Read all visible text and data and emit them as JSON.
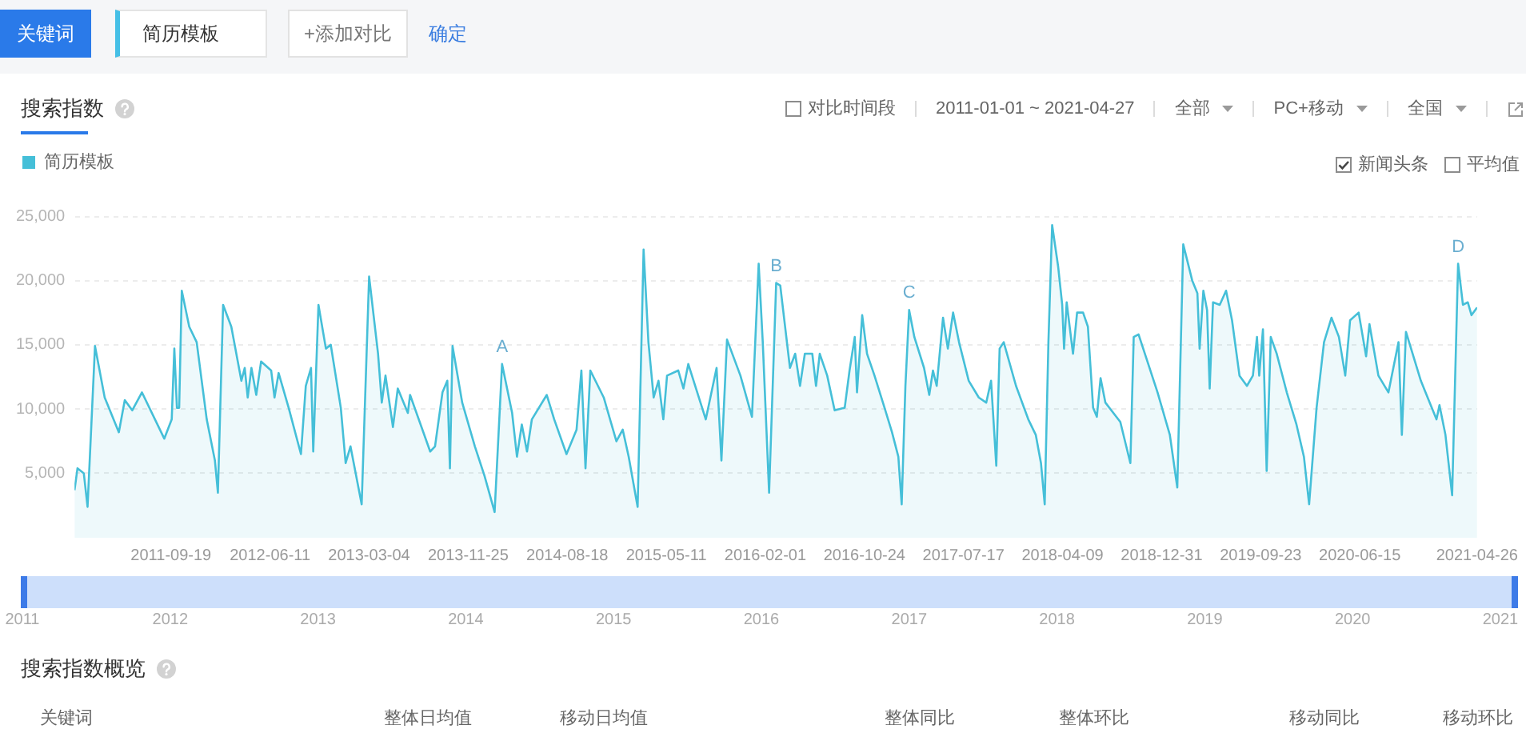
{
  "chart_data": {
    "type": "area",
    "title": "搜索指数",
    "x": [
      "2011-01-03",
      "2011-01-11",
      "2011-01-28",
      "2011-02-07",
      "2011-02-27",
      "2011-03-25",
      "2011-05-02",
      "2011-05-18",
      "2011-06-07",
      "2011-07-03",
      "2011-09-01",
      "2011-09-21",
      "2011-09-28",
      "2011-10-05",
      "2011-10-11",
      "2011-10-18",
      "2011-11-07",
      "2011-11-27",
      "2011-12-24",
      "2012-01-15",
      "2012-01-23",
      "2012-02-06",
      "2012-02-28",
      "2012-03-26",
      "2012-04-04",
      "2012-04-12",
      "2012-04-22",
      "2012-05-05",
      "2012-05-18",
      "2012-06-14",
      "2012-06-23",
      "2012-07-04",
      "2012-07-31",
      "2012-09-02",
      "2012-09-15",
      "2012-09-29",
      "2012-10-05",
      "2012-10-19",
      "2012-11-08",
      "2012-11-21",
      "2012-12-18",
      "2012-12-31",
      "2013-01-13",
      "2013-02-12",
      "2013-03-04",
      "2013-03-28",
      "2013-04-07",
      "2013-04-17",
      "2013-05-07",
      "2013-05-20",
      "2013-06-16",
      "2013-06-22",
      "2013-08-15",
      "2013-08-28",
      "2013-09-17",
      "2013-09-30",
      "2013-10-07",
      "2013-10-14",
      "2013-11-09",
      "2013-12-13",
      "2014-01-08",
      "2014-02-04",
      "2014-02-24",
      "2014-03-23",
      "2014-04-05",
      "2014-04-18",
      "2014-05-02",
      "2014-05-15",
      "2014-06-24",
      "2014-07-14",
      "2014-08-16",
      "2014-09-12",
      "2014-09-25",
      "2014-10-06",
      "2014-10-19",
      "2014-11-24",
      "2014-12-28",
      "2015-01-14",
      "2015-01-30",
      "2015-02-23",
      "2015-03-11",
      "2015-03-24",
      "2015-04-07",
      "2015-04-20",
      "2015-05-03",
      "2015-05-13",
      "2015-06-12",
      "2015-06-26",
      "2015-07-09",
      "2015-08-25",
      "2015-09-23",
      "2015-10-06",
      "2015-10-21",
      "2015-11-26",
      "2015-12-27",
      "2016-01-14",
      "2016-01-25",
      "2016-02-11",
      "2016-03-01",
      "2016-03-12",
      "2016-03-25",
      "2016-04-07",
      "2016-04-21",
      "2016-05-04",
      "2016-05-17",
      "2016-06-06",
      "2016-06-16",
      "2016-06-26",
      "2016-07-16",
      "2016-08-05",
      "2016-09-01",
      "2016-09-14",
      "2016-09-28",
      "2016-10-04",
      "2016-10-18",
      "2016-10-31",
      "2016-11-20",
      "2016-12-17",
      "2017-01-06",
      "2017-01-23",
      "2017-02-01",
      "2017-02-11",
      "2017-02-21",
      "2017-03-07",
      "2017-04-02",
      "2017-04-16",
      "2017-04-26",
      "2017-05-06",
      "2017-05-23",
      "2017-06-05",
      "2017-06-19",
      "2017-07-05",
      "2017-07-31",
      "2017-08-27",
      "2017-09-16",
      "2017-09-29",
      "2017-10-13",
      "2017-10-22",
      "2017-11-02",
      "2017-12-05",
      "2018-01-07",
      "2018-01-27",
      "2018-02-10",
      "2018-02-20",
      "2018-03-02",
      "2018-03-12",
      "2018-03-28",
      "2018-04-08",
      "2018-04-13",
      "2018-04-20",
      "2018-05-07",
      "2018-05-18",
      "2018-06-03",
      "2018-06-16",
      "2018-06-30",
      "2018-07-10",
      "2018-07-20",
      "2018-08-02",
      "2018-09-11",
      "2018-10-08",
      "2018-10-17",
      "2018-10-30",
      "2018-12-20",
      "2019-01-22",
      "2019-02-11",
      "2019-02-27",
      "2019-03-23",
      "2019-04-06",
      "2019-04-12",
      "2019-04-22",
      "2019-05-02",
      "2019-05-09",
      "2019-05-18",
      "2019-06-05",
      "2019-06-22",
      "2019-07-08",
      "2019-07-28",
      "2019-08-17",
      "2019-09-02",
      "2019-09-13",
      "2019-09-19",
      "2019-09-29",
      "2019-10-09",
      "2019-10-20",
      "2019-11-05",
      "2019-12-02",
      "2019-12-28",
      "2020-01-17",
      "2020-01-31",
      "2020-02-20",
      "2020-03-11",
      "2020-03-31",
      "2020-04-20",
      "2020-05-07",
      "2020-05-20",
      "2020-06-12",
      "2020-07-02",
      "2020-07-11",
      "2020-08-04",
      "2020-08-31",
      "2020-09-27",
      "2020-10-06",
      "2020-10-17",
      "2020-11-26",
      "2021-01-07",
      "2021-01-15",
      "2021-01-31",
      "2021-02-18",
      "2021-03-06",
      "2021-03-19",
      "2021-04-01",
      "2021-04-11",
      "2021-04-26"
    ],
    "series": [
      {
        "name": "简历模板",
        "color": "#45bfd8",
        "values": [
          3700,
          5400,
          5000,
          2400,
          14900,
          10900,
          8200,
          10700,
          9900,
          11300,
          7700,
          9200,
          14700,
          10100,
          10100,
          19200,
          16400,
          15200,
          9200,
          6000,
          3500,
          18100,
          16400,
          12200,
          13200,
          10900,
          13200,
          11100,
          13700,
          13000,
          10900,
          12800,
          10100,
          6500,
          11800,
          13200,
          6700,
          18100,
          14700,
          15000,
          10100,
          5800,
          7100,
          2600,
          20300,
          14300,
          10500,
          12600,
          8600,
          11600,
          9700,
          11100,
          6700,
          7100,
          11300,
          12200,
          5400,
          14900,
          10500,
          7100,
          4800,
          2000,
          13500,
          9700,
          6300,
          8800,
          6700,
          9200,
          11100,
          9200,
          6500,
          8400,
          13000,
          5400,
          13000,
          10900,
          7500,
          8400,
          6300,
          2400,
          22400,
          15200,
          10900,
          12200,
          9200,
          12600,
          13000,
          11600,
          13500,
          9200,
          13200,
          6000,
          15400,
          12600,
          9400,
          21300,
          15200,
          3500,
          19800,
          19600,
          16400,
          13200,
          14300,
          11800,
          14300,
          14300,
          11800,
          14300,
          12600,
          9900,
          10100,
          13000,
          15600,
          11300,
          17300,
          14300,
          12600,
          10100,
          8200,
          6300,
          2600,
          11800,
          17700,
          15600,
          13200,
          11100,
          13000,
          11800,
          17100,
          14700,
          17500,
          15200,
          12200,
          10900,
          10500,
          12200,
          5600,
          14700,
          15200,
          11800,
          9200,
          8000,
          5800,
          2600,
          15200,
          24300,
          21100,
          18100,
          14700,
          18300,
          14300,
          17500,
          17500,
          16400,
          10100,
          9400,
          12400,
          10500,
          9000,
          5800,
          15600,
          15800,
          11300,
          8000,
          3900,
          22800,
          20000,
          19000,
          14700,
          19200,
          17700,
          11600,
          18300,
          18100,
          19200,
          16900,
          12600,
          11800,
          12600,
          15600,
          12600,
          16200,
          5200,
          15600,
          14300,
          11300,
          8800,
          6300,
          2600,
          10100,
          15200,
          17100,
          15600,
          12600,
          16900,
          17500,
          14100,
          16600,
          12600,
          11300,
          15200,
          8000,
          16000,
          12200,
          9200,
          10300,
          8000,
          3300,
          21300,
          18100,
          18300,
          17300,
          17900
        ]
      }
    ],
    "xlim": [
      "2011-01-03",
      "2021-04-26"
    ],
    "xticks": [
      "2011-09-19",
      "2012-06-11",
      "2013-03-04",
      "2013-11-25",
      "2014-08-18",
      "2015-05-11",
      "2016-02-01",
      "2016-10-24",
      "2017-07-17",
      "2018-04-09",
      "2018-12-31",
      "2019-09-23",
      "2020-06-15",
      "2021-04-26"
    ],
    "ylim": [
      0,
      25000
    ],
    "yticks": [
      {
        "value": 5000,
        "label": "5,000"
      },
      {
        "value": 10000,
        "label": "10,000"
      },
      {
        "value": 15000,
        "label": "15,000"
      },
      {
        "value": 20000,
        "label": "20,000"
      },
      {
        "value": 25000,
        "label": "25,000"
      }
    ],
    "grid": "y",
    "legend": "top left",
    "marker": "none",
    "annotations": [
      "关键词",
      "简历模板",
      "+添加对比",
      "确定",
      "对比时间段",
      "2011-01-01 ~ 2021-04-27",
      "全部",
      "PC+移动",
      "全国",
      "新闻头条",
      "平均值",
      "2011",
      "2012",
      "2013",
      "2014",
      "2015",
      "2016",
      "2017",
      "2018",
      "2019",
      "2020",
      "2021",
      "搜索指数概览",
      "关键词",
      "整体日均值",
      "移动日均值",
      "整体同比",
      "整体环比",
      "移动同比",
      "移动环比",
      {
        "text": "A",
        "x": "2014-02-24",
        "y": 13500
      },
      {
        "text": "B",
        "x": "2016-03-01",
        "y": 19800
      },
      {
        "text": "C",
        "x": "2017-02-21",
        "y": 17700
      },
      {
        "text": "D",
        "x": "2021-03-06",
        "y": 21300
      }
    ]
  }
}
